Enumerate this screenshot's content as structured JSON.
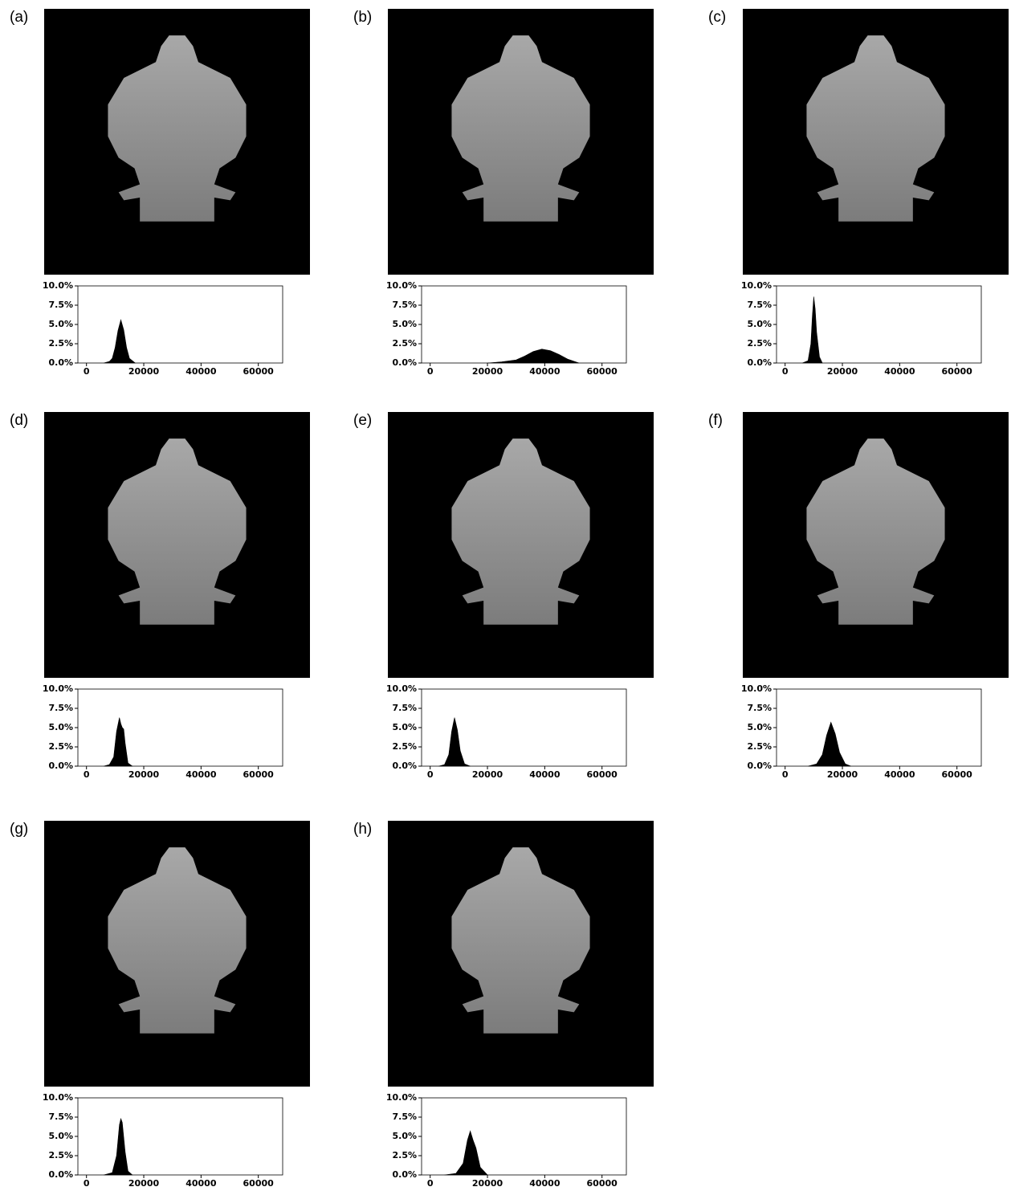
{
  "chart_data": [
    {
      "type": "area",
      "title": "(a)",
      "color": "#000000",
      "xlim": [
        -3000,
        68500
      ],
      "ylim": [
        0,
        10
      ],
      "xticks": [
        0,
        20000,
        40000,
        60000
      ],
      "yticks": [
        {
          "value": 0,
          "label": "0.0%"
        },
        {
          "value": 2.5,
          "label": "2.5%"
        },
        {
          "value": 5,
          "label": "5.0%"
        },
        {
          "value": 7.5,
          "label": "7.5%"
        },
        {
          "value": 10,
          "label": "10.0%"
        }
      ],
      "x": [
        6000,
        8000,
        9000,
        10000,
        11000,
        12000,
        13000,
        14000,
        15000,
        17000
      ],
      "values": [
        0,
        0.2,
        0.6,
        2,
        4.2,
        5.6,
        4.3,
        2,
        0.6,
        0
      ]
    },
    {
      "type": "area",
      "title": "(b)",
      "color": "#000000",
      "xlim": [
        -3000,
        68500
      ],
      "ylim": [
        0,
        10
      ],
      "xticks": [
        0,
        20000,
        40000,
        60000
      ],
      "yticks": [
        {
          "value": 0,
          "label": "0.0%"
        },
        {
          "value": 2.5,
          "label": "2.5%"
        },
        {
          "value": 5,
          "label": "5.0%"
        },
        {
          "value": 7.5,
          "label": "7.5%"
        },
        {
          "value": 10,
          "label": "10.0%"
        }
      ],
      "x": [
        20000,
        25000,
        30000,
        33000,
        36000,
        39000,
        42000,
        45000,
        48000,
        52000
      ],
      "values": [
        0,
        0.15,
        0.4,
        0.9,
        1.5,
        1.8,
        1.6,
        1.1,
        0.5,
        0
      ]
    },
    {
      "type": "area",
      "title": "(c)",
      "color": "#000000",
      "xlim": [
        -3000,
        68500
      ],
      "ylim": [
        0,
        10
      ],
      "xticks": [
        0,
        20000,
        40000,
        60000
      ],
      "yticks": [
        {
          "value": 0,
          "label": "0.0%"
        },
        {
          "value": 2.5,
          "label": "2.5%"
        },
        {
          "value": 5,
          "label": "5.0%"
        },
        {
          "value": 7.5,
          "label": "7.5%"
        },
        {
          "value": 10,
          "label": "10.0%"
        }
      ],
      "x": [
        6000,
        8000,
        9000,
        9500,
        10000,
        10500,
        11000,
        12000,
        13000
      ],
      "values": [
        0,
        0.3,
        2.5,
        6,
        8.6,
        7,
        4,
        0.8,
        0
      ]
    },
    {
      "type": "area",
      "title": "(d)",
      "color": "#000000",
      "xlim": [
        -3000,
        68500
      ],
      "ylim": [
        0,
        10
      ],
      "xticks": [
        0,
        20000,
        40000,
        60000
      ],
      "yticks": [
        {
          "value": 0,
          "label": "0.0%"
        },
        {
          "value": 2.5,
          "label": "2.5%"
        },
        {
          "value": 5,
          "label": "5.0%"
        },
        {
          "value": 7.5,
          "label": "7.5%"
        },
        {
          "value": 10,
          "label": "10.0%"
        }
      ],
      "x": [
        6000,
        8000,
        9500,
        10500,
        11500,
        12000,
        12500,
        13000,
        13500,
        14500,
        16000
      ],
      "values": [
        0,
        0.2,
        1.2,
        4.5,
        6.3,
        5.5,
        5.0,
        4.8,
        3,
        0.4,
        0
      ]
    },
    {
      "type": "area",
      "title": "(e)",
      "color": "#000000",
      "xlim": [
        -3000,
        68500
      ],
      "ylim": [
        0,
        10
      ],
      "xticks": [
        0,
        20000,
        40000,
        60000
      ],
      "yticks": [
        {
          "value": 0,
          "label": "0.0%"
        },
        {
          "value": 2.5,
          "label": "2.5%"
        },
        {
          "value": 5,
          "label": "5.0%"
        },
        {
          "value": 7.5,
          "label": "7.5%"
        },
        {
          "value": 10,
          "label": "10.0%"
        }
      ],
      "x": [
        3000,
        5000,
        6500,
        7500,
        8500,
        9500,
        10500,
        12000,
        14000
      ],
      "values": [
        0,
        0.2,
        1.5,
        4.5,
        6.3,
        4.7,
        2,
        0.3,
        0
      ]
    },
    {
      "type": "area",
      "title": "(f)",
      "color": "#000000",
      "xlim": [
        -3000,
        68500
      ],
      "ylim": [
        0,
        10
      ],
      "xticks": [
        0,
        20000,
        40000,
        60000
      ],
      "yticks": [
        {
          "value": 0,
          "label": "0.0%"
        },
        {
          "value": 2.5,
          "label": "2.5%"
        },
        {
          "value": 5,
          "label": "5.0%"
        },
        {
          "value": 7.5,
          "label": "7.5%"
        },
        {
          "value": 10,
          "label": "10.0%"
        }
      ],
      "x": [
        8000,
        11000,
        13000,
        14500,
        16000,
        17500,
        19000,
        21000,
        23000
      ],
      "values": [
        0,
        0.3,
        1.5,
        4,
        5.7,
        4.2,
        1.8,
        0.3,
        0
      ]
    },
    {
      "type": "area",
      "title": "(g)",
      "color": "#000000",
      "xlim": [
        -3000,
        68500
      ],
      "ylim": [
        0,
        10
      ],
      "xticks": [
        0,
        20000,
        40000,
        60000
      ],
      "yticks": [
        {
          "value": 0,
          "label": "0.0%"
        },
        {
          "value": 2.5,
          "label": "2.5%"
        },
        {
          "value": 5,
          "label": "5.0%"
        },
        {
          "value": 7.5,
          "label": "7.5%"
        },
        {
          "value": 10,
          "label": "10.0%"
        }
      ],
      "x": [
        6000,
        9000,
        10500,
        11500,
        12000,
        12500,
        13500,
        14500,
        16000
      ],
      "values": [
        0,
        0.3,
        2.5,
        6.5,
        7.3,
        6.8,
        3,
        0.5,
        0
      ]
    },
    {
      "type": "area",
      "title": "(h)",
      "color": "#000000",
      "xlim": [
        -3000,
        68500
      ],
      "ylim": [
        0,
        10
      ],
      "xticks": [
        0,
        20000,
        40000,
        60000
      ],
      "yticks": [
        {
          "value": 0,
          "label": "0.0%"
        },
        {
          "value": 2.5,
          "label": "2.5%"
        },
        {
          "value": 5,
          "label": "5.0%"
        },
        {
          "value": 7.5,
          "label": "7.5%"
        },
        {
          "value": 10,
          "label": "10.0%"
        }
      ],
      "x": [
        5000,
        9000,
        11500,
        13000,
        14000,
        15000,
        16000,
        17500,
        20000
      ],
      "values": [
        0,
        0.2,
        1.5,
        4.5,
        5.7,
        4.5,
        3.5,
        1,
        0
      ]
    }
  ]
}
